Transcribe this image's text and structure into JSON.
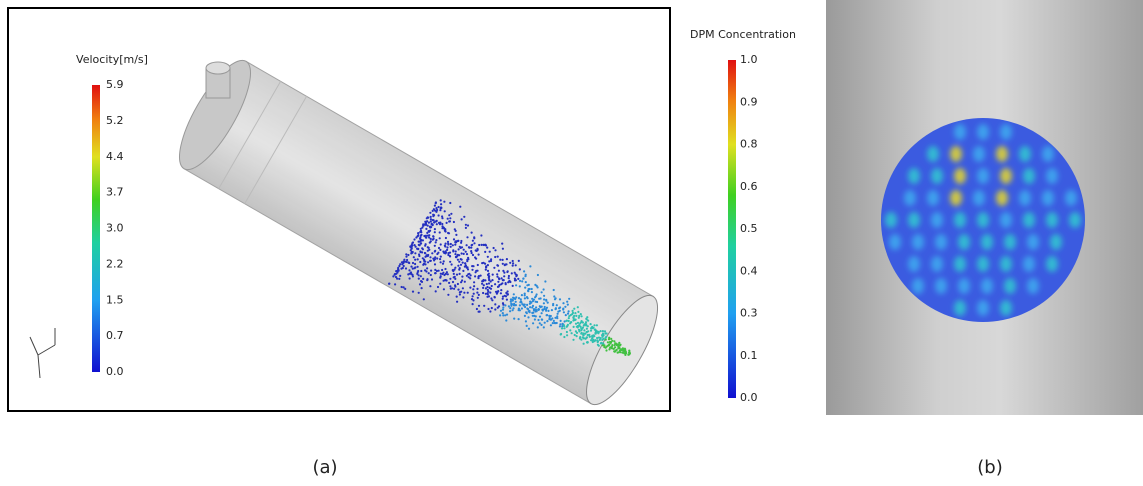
{
  "panel_a": {
    "legend_title": "Velocity[m/s]",
    "legend_labels": [
      "5.9",
      "5.2",
      "4.4",
      "3.7",
      "3.0",
      "2.2",
      "1.5",
      "0.7",
      "0.0"
    ],
    "caption": "(a)"
  },
  "panel_b": {
    "legend_title": "DPM Concentration",
    "legend_labels": [
      "1.0",
      "0.9",
      "0.8",
      "0.6",
      "0.5",
      "0.4",
      "0.3",
      "0.1",
      "0.0"
    ],
    "caption": "(b)"
  }
}
